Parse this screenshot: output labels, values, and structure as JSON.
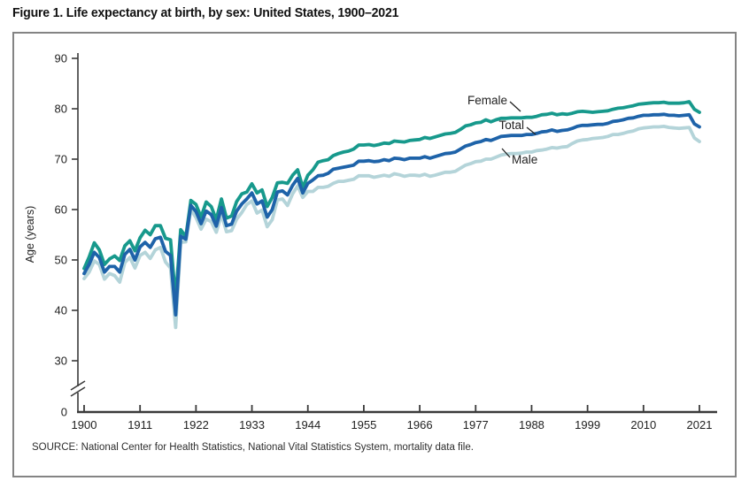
{
  "title": "Figure 1. Life expectancy at birth, by sex: United States, 1900–2021",
  "source": "SOURCE: National Center for Health Statistics, National Vital Statistics System, mortality data file.",
  "colors": {
    "female_line": "#17998c",
    "total_line": "#1e63a9",
    "male_line": "#b4d4d9",
    "axis": "#3a3a3a",
    "box_border": "#848484"
  },
  "chart_data": {
    "type": "line",
    "title": "Figure 1. Life expectancy at birth, by sex: United States, 1900–2021",
    "xlabel": "",
    "ylabel": "Age (years)",
    "x_range": [
      1900,
      2021
    ],
    "x_step": 1,
    "x_ticks": [
      1900,
      1911,
      1922,
      1933,
      1944,
      1955,
      1966,
      1977,
      1988,
      1999,
      2010,
      2021
    ],
    "ylim": [
      0,
      90
    ],
    "y_visible_range": [
      30,
      90
    ],
    "y_ticks": [
      0,
      30,
      40,
      50,
      60,
      70,
      80,
      90
    ],
    "axis_break": true,
    "grid": false,
    "legend_position": "inline-annotations",
    "series": [
      {
        "name": "Female",
        "color": "#17998c",
        "values": [
          48.3,
          50.6,
          53.4,
          52.0,
          49.1,
          50.2,
          50.8,
          49.9,
          52.8,
          53.8,
          51.8,
          54.4,
          55.9,
          55.0,
          56.8,
          56.8,
          54.3,
          54.0,
          42.2,
          56.0,
          54.6,
          61.8,
          61.0,
          58.5,
          61.5,
          60.6,
          58.0,
          62.1,
          58.3,
          58.7,
          61.6,
          63.1,
          63.5,
          65.1,
          63.3,
          63.9,
          60.6,
          62.4,
          65.3,
          65.4,
          65.2,
          66.8,
          67.9,
          64.4,
          66.8,
          67.9,
          69.4,
          69.7,
          69.9,
          70.7,
          71.1,
          71.4,
          71.6,
          72.0,
          72.8,
          72.8,
          72.9,
          72.7,
          72.9,
          73.2,
          73.1,
          73.6,
          73.5,
          73.4,
          73.7,
          73.8,
          73.9,
          74.3,
          74.1,
          74.4,
          74.7,
          75.0,
          75.1,
          75.3,
          75.9,
          76.6,
          76.8,
          77.2,
          77.3,
          77.8,
          77.4,
          77.8,
          78.1,
          78.1,
          78.2,
          78.2,
          78.2,
          78.3,
          78.3,
          78.5,
          78.8,
          78.9,
          79.1,
          78.8,
          79.0,
          78.9,
          79.1,
          79.4,
          79.5,
          79.4,
          79.3,
          79.4,
          79.5,
          79.6,
          79.9,
          80.1,
          80.2,
          80.4,
          80.6,
          80.9,
          81.0,
          81.1,
          81.2,
          81.2,
          81.3,
          81.1,
          81.1,
          81.1,
          81.2,
          81.4,
          79.9,
          79.3
        ]
      },
      {
        "name": "Total",
        "color": "#1e63a9",
        "values": [
          47.3,
          49.1,
          51.5,
          50.5,
          47.6,
          48.7,
          48.7,
          47.6,
          51.1,
          52.1,
          50.0,
          52.6,
          53.5,
          52.5,
          54.2,
          54.5,
          51.7,
          50.9,
          39.1,
          54.7,
          54.1,
          60.8,
          59.6,
          57.2,
          59.7,
          59.0,
          56.7,
          60.4,
          56.8,
          57.1,
          59.7,
          61.1,
          62.1,
          63.3,
          61.1,
          61.7,
          58.5,
          60.0,
          63.5,
          63.7,
          62.9,
          64.8,
          66.2,
          63.3,
          65.2,
          65.9,
          66.7,
          66.8,
          67.2,
          68.0,
          68.2,
          68.4,
          68.6,
          68.8,
          69.6,
          69.6,
          69.7,
          69.5,
          69.6,
          69.9,
          69.7,
          70.2,
          70.1,
          69.9,
          70.2,
          70.2,
          70.2,
          70.5,
          70.2,
          70.5,
          70.8,
          71.1,
          71.2,
          71.4,
          72.0,
          72.6,
          72.9,
          73.3,
          73.5,
          73.9,
          73.7,
          74.1,
          74.5,
          74.6,
          74.7,
          74.7,
          74.7,
          74.9,
          74.9,
          75.1,
          75.4,
          75.5,
          75.8,
          75.5,
          75.7,
          75.8,
          76.1,
          76.5,
          76.7,
          76.7,
          76.8,
          76.9,
          76.9,
          77.1,
          77.5,
          77.6,
          77.8,
          78.1,
          78.2,
          78.5,
          78.7,
          78.7,
          78.8,
          78.8,
          78.9,
          78.7,
          78.7,
          78.6,
          78.7,
          78.8,
          77.0,
          76.4
        ]
      },
      {
        "name": "Male",
        "color": "#b4d4d9",
        "values": [
          46.3,
          47.6,
          49.8,
          49.1,
          46.2,
          47.3,
          46.9,
          45.6,
          49.5,
          50.5,
          48.4,
          50.9,
          51.5,
          50.3,
          52.0,
          52.5,
          49.6,
          48.4,
          36.6,
          53.5,
          53.6,
          60.0,
          58.4,
          56.1,
          58.1,
          57.6,
          55.5,
          59.0,
          55.6,
          55.8,
          58.1,
          59.4,
          61.0,
          61.7,
          59.3,
          59.9,
          56.6,
          58.0,
          61.9,
          62.1,
          60.8,
          63.1,
          64.7,
          62.4,
          63.6,
          63.6,
          64.4,
          64.4,
          64.6,
          65.2,
          65.6,
          65.6,
          65.8,
          66.0,
          66.7,
          66.7,
          66.7,
          66.4,
          66.6,
          66.8,
          66.6,
          67.1,
          66.9,
          66.6,
          66.8,
          66.8,
          66.7,
          67.0,
          66.6,
          66.8,
          67.1,
          67.4,
          67.4,
          67.6,
          68.2,
          68.8,
          69.1,
          69.5,
          69.6,
          70.0,
          70.0,
          70.4,
          70.8,
          71.0,
          71.1,
          71.1,
          71.2,
          71.4,
          71.4,
          71.7,
          71.8,
          72.0,
          72.3,
          72.2,
          72.4,
          72.5,
          73.1,
          73.6,
          73.8,
          73.9,
          74.1,
          74.2,
          74.3,
          74.5,
          74.9,
          74.9,
          75.1,
          75.4,
          75.6,
          76.0,
          76.2,
          76.3,
          76.4,
          76.4,
          76.5,
          76.3,
          76.2,
          76.1,
          76.2,
          76.3,
          74.2,
          73.5
        ]
      }
    ]
  }
}
